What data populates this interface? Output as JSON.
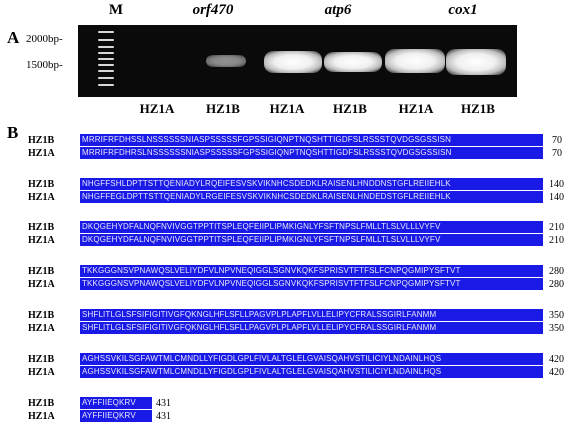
{
  "panel_a_label": "A",
  "panel_b_label": "B",
  "gel": {
    "lane_headers": {
      "marker": "M",
      "gene1": "orf470",
      "gene2": "atp6",
      "gene3": "cox1"
    },
    "size_labels": [
      "2000bp-",
      "1500bp-"
    ],
    "sample_labels": [
      "HZ1A",
      "HZ1B",
      "HZ1A",
      "HZ1B",
      "HZ1A",
      "HZ1B"
    ]
  },
  "alignment": [
    {
      "rows": [
        {
          "name": "HZ1B",
          "seq": "MRRIFRFDHSSLNSSSSSSNIASPSSSSSFGPSSIGIQNPTNQSHTTIGDFSLRSSSTQVDGSGSSISN",
          "end": "70"
        },
        {
          "name": "HZ1A",
          "seq": "MRRIFRFDHRSLNSSSSSSNIASPSSSSSFGPSSIGIQNPTNQSHTTIGDFSLRSSSTQVDGSGSSISN",
          "end": "70"
        }
      ]
    },
    {
      "rows": [
        {
          "name": "HZ1B",
          "seq": "NHGFFSHLDPTTSTTQENIADYLRQEIFESVSKVIKNHCSDEDKLRAISENLHNDDNSTGFLREIIEHLK",
          "end": "140"
        },
        {
          "name": "HZ1A",
          "seq": "NHGFFEGLDPTTSTTQENIADYLRGEIFESVSKVIKNHCSDEDKLRAISENLHNDEDSTGFLREIIEHLK",
          "end": "140"
        }
      ]
    },
    {
      "rows": [
        {
          "name": "HZ1B",
          "seq": "DKQGEHYDFALNQFNVIVGGTPPTITSPLEQFEIIPLIPMKIGNLYFSFTNPSLFMLLTLSLVLLLVYFV",
          "end": "210"
        },
        {
          "name": "HZ1A",
          "seq": "DKQGEHYDFALNQFNVIVGGTPPTITSPLEQFEIIPLIPMKIGNLYFSFTNPSLFMLLTLSLVLLLVYFV",
          "end": "210"
        }
      ]
    },
    {
      "rows": [
        {
          "name": "HZ1B",
          "seq": "TKKGGGNSVPNAWQSLVELIYDFVLNPVNEQIGGLSGNVKQKFSPRISVTFTFSLFCNPQGMIPYSFTVT",
          "end": "280"
        },
        {
          "name": "HZ1A",
          "seq": "TKKGGGNSVPNAWQSLVELIYDFVLNPVNEQIGGLSGNVKQKFSPRISVTFTFSLFCNPQGMIPYSFTVT",
          "end": "280"
        }
      ]
    },
    {
      "rows": [
        {
          "name": "HZ1B",
          "seq": "SHFLITLGLSFSIFIGITIVGFQKNGLHFLSFLLPAGVPLPLAPFLVLLELIPYCFRALSSGIRLFANMM",
          "end": "350"
        },
        {
          "name": "HZ1A",
          "seq": "SHFLITLGLSFSIFIGITIVGFQKNGLHFLSFLLPAGVPLPLAPFLVLLELIPYCFRALSSGIRLFANMM",
          "end": "350"
        }
      ]
    },
    {
      "rows": [
        {
          "name": "HZ1B",
          "seq": "AGHSSVKILSGFAWTMLCMNDLLYFIGDLGPLFIVLALTGLELGVAISQAHVSTILICIYLNDAINLHQS",
          "end": "420"
        },
        {
          "name": "HZ1A",
          "seq": "AGHSSVKILSGFAWTMLCMNDLLYFIGDLGPLFIVLALTGLELGVAISQAHVSTILICIYLNDAINLHQS",
          "end": "420"
        }
      ]
    },
    {
      "rows": [
        {
          "name": "HZ1B",
          "seq": "AYFFIIEQKRV",
          "end": "431"
        },
        {
          "name": "HZ1A",
          "seq": "AYFFIIEQKRV",
          "end": "431"
        }
      ]
    }
  ]
}
